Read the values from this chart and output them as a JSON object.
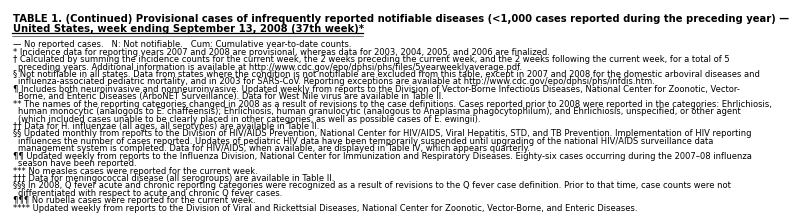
{
  "title_line1": "TABLE 1. (Continued) Provisional cases of infrequently reported notifiable diseases (<1,000 cases reported during the preceding year) —",
  "title_line2": "United States, week ending September 13, 2008 (37th week)*",
  "background_color": "#ffffff",
  "text_color": "#000000",
  "title_fontsize": 7.2,
  "body_fontsize": 6.0,
  "footnotes": [
    {
      "—": "No reported cases.   N: Not notifiable.   Cum: Cumulative year-to-date counts."
    },
    {
      "*": "Incidence data for reporting years 2007 and 2008 are provisional, whereas data for 2003, 2004, 2005, and 2006 are finalized."
    },
    {
      "†": "Calculated by summing the incidence counts for the current week, the 2 weeks preceding the current week, and the 2 weeks following the current week, for a total of 5\npreceding years. Additional information is available at http://www.cdc.gov/epo/dphsi/phs/files/5yearweeklyaverage.pdf."
    },
    {
      "§": "Not notifiable in all states. Data from states where the condition is not notifiable are excluded from this table, except in 2007 and 2008 for the domestic arboviral diseases and\ninfluenza-associated pediatric mortality, and in 2003 for SARS-CoV. Reporting exceptions are available at http://www.cdc.gov/epo/dphsi/phs/infdis.htm."
    },
    {
      "¶": "Includes both neuroinvasive and nonneuroinvasive. Updated weekly from reports to the Division of Vector-Borne Infectious Diseases, National Center for Zoonotic, Vector-\nBorne, and Enteric Diseases (ArboNET Surveillance). Data for West Nile virus are available in Table II."
    },
    {
      "**": "The names of the reporting categories changed in 2008 as a result of revisions to the case definitions. Cases reported prior to 2008 were reported in the categories: Ehrlichiosis,\nhuman monocytic (analogous to E. chaffeensis); Ehrlichiosis, human granulocytic (analogous to Anaplasma phagocytophilum), and Ehrlichiosis, unspecified, or other agent\n(which included cases unable to be clearly placed in other categories, as well as possible cases of E. ewingii)."
    },
    {
      "††": "Data for H. influenzae (all ages, all serotypes) are available in Table II."
    },
    {
      "§§": "Updated monthly from reports to the Division of HIV/AIDS Prevention, National Center for HIV/AIDS, Viral Hepatitis, STD, and TB Prevention. Implementation of HIV reporting\ninfluences the number of cases reported. Updates of pediatric HIV data have been temporarily suspended until upgrading of the national HIV/AIDS surveillance data\nmanagement system is completed. Data for HIV/AIDS, when available, are displayed in Table IV, which appears quarterly."
    },
    {
      "¶¶": "Updated weekly from reports to the Influenza Division, National Center for Immunization and Respiratory Diseases. Eighty-six cases occurring during the 2007–08 influenza\nseason have been reported."
    },
    {
      "***": "No measles cases were reported for the current week."
    },
    {
      "†††": "Data for meningococcal disease (all serogroups) are available in Table II."
    },
    {
      "§§§": "In 2008, Q fever acute and chronic reporting categories were recognized as a result of revisions to the Q fever case definition. Prior to that time, case counts were not\ndifferentiated with respect to acute and chronic Q fever cases."
    },
    {
      "¶¶¶": "No rubella cases were reported for the current week."
    },
    {
      "****": "Updated weekly from reports to the Division of Viral and Rickettsial Diseases, National Center for Zoonotic, Vector-Borne, and Enteric Diseases."
    }
  ]
}
